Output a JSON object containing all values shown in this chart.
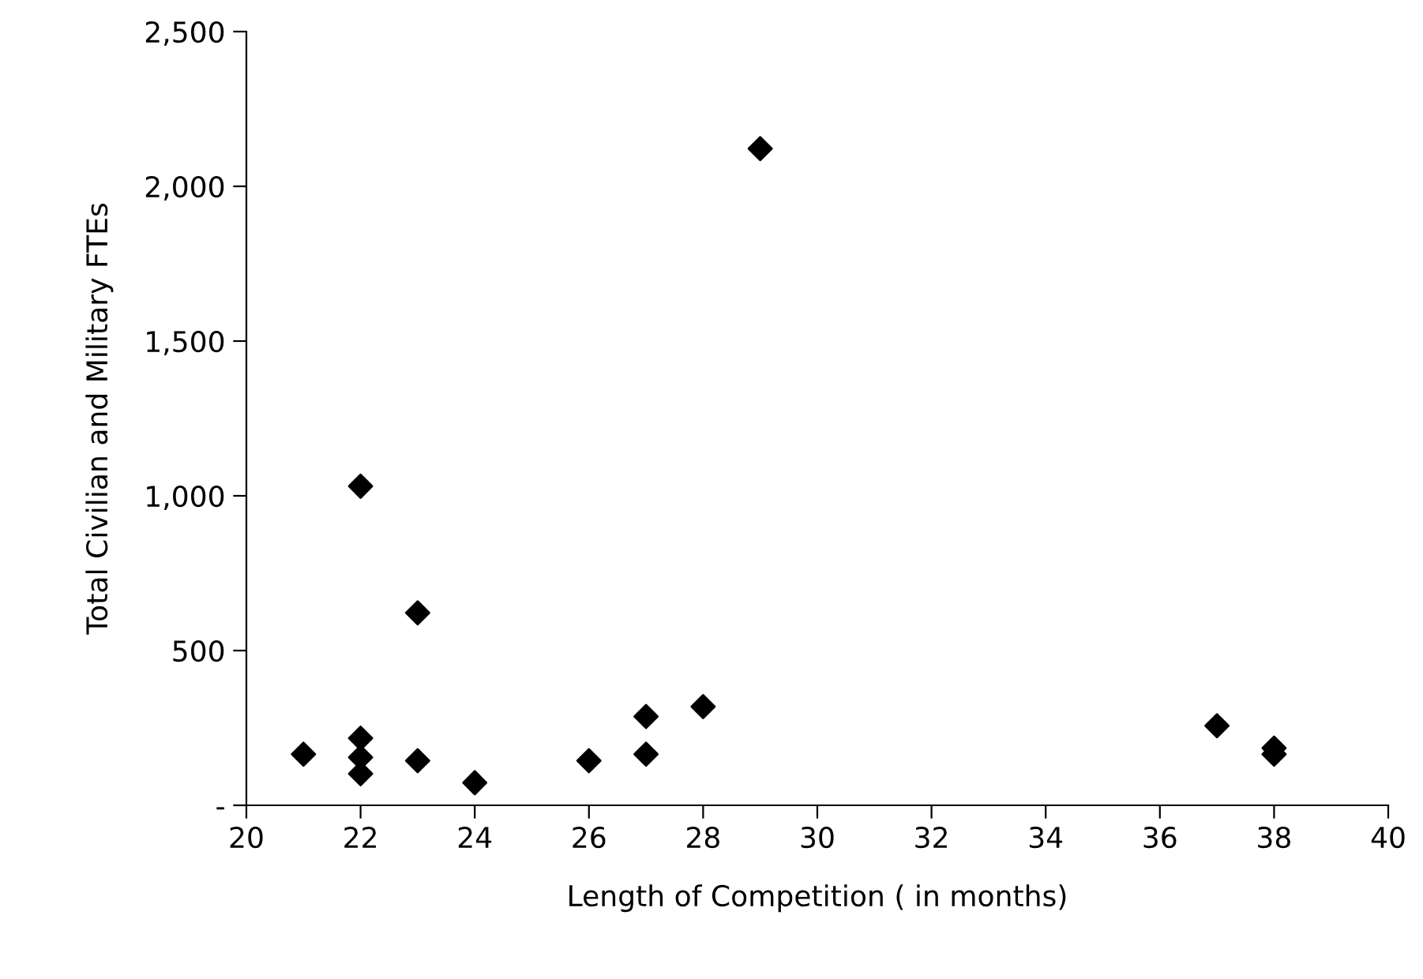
{
  "chart_data": {
    "type": "scatter",
    "xlabel": "Length of Competition ( in months)",
    "ylabel": "Total Civilian and Military FTEs",
    "x": [
      21,
      22,
      22,
      22,
      22,
      23,
      23,
      24,
      26,
      27,
      27,
      28,
      29,
      37,
      38,
      38
    ],
    "series": [
      {
        "color": "#000000",
        "values": [
          165,
          1031,
          217,
          155,
          102,
          622,
          144,
          73,
          144,
          287,
          165,
          319,
          2122,
          257,
          185,
          165
        ]
      }
    ],
    "xlim": [
      20,
      40
    ],
    "xticks": [
      20,
      22,
      24,
      26,
      28,
      30,
      32,
      34,
      36,
      38,
      40
    ],
    "ylim": [
      0,
      2500
    ],
    "yticks": [
      {
        "value": 0,
        "label": "-"
      },
      {
        "value": 500,
        "label": "500"
      },
      {
        "value": 1000,
        "label": "1,000"
      },
      {
        "value": 1500,
        "label": "1,500"
      },
      {
        "value": 2000,
        "label": "2,000"
      },
      {
        "value": 2500,
        "label": "2,500"
      }
    ],
    "marker": "diamond",
    "grid": false
  }
}
